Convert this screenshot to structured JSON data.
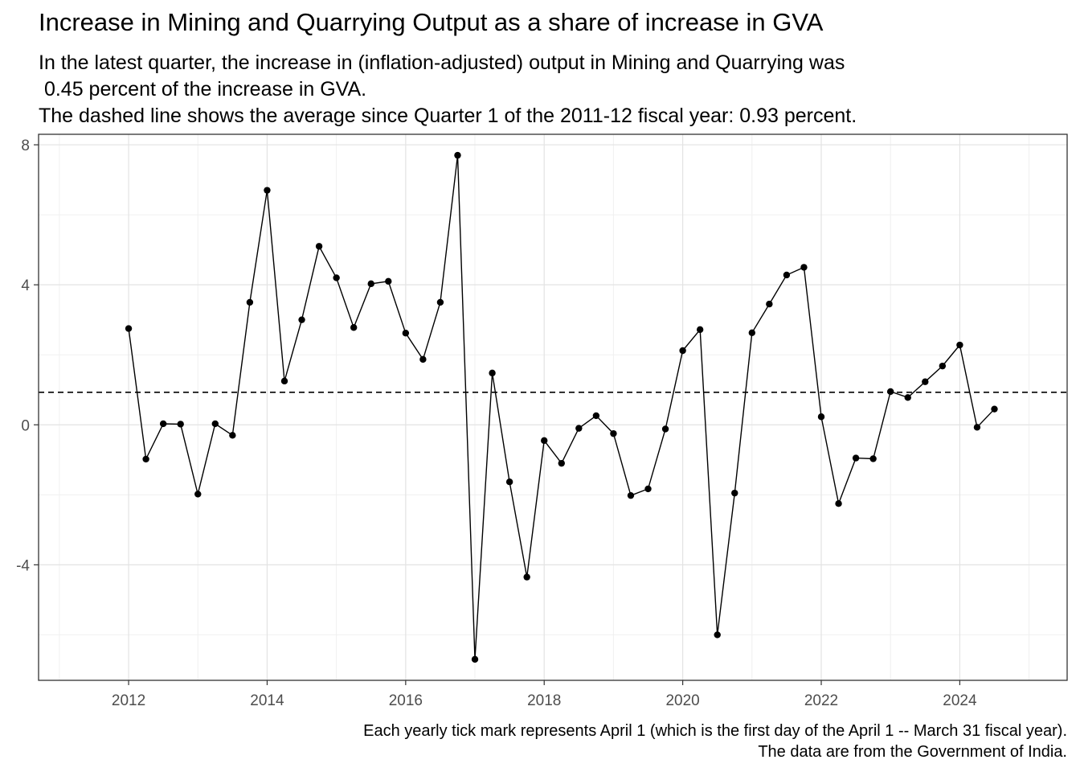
{
  "chart_data": {
    "type": "line",
    "title": "Increase in Mining and Quarrying Output as a share of increase in GVA",
    "subtitle": [
      "In the latest quarter, the increase in (inflation-adjusted) output in Mining and Quarrying was",
      " 0.45 percent of the increase in GVA.",
      "The dashed line shows the average since Quarter 1 of the 2011-12 fiscal year: 0.93 percent."
    ],
    "caption": [
      "Each yearly tick mark represents April 1 (which is the first day of the April 1 -- March 31 fiscal year).",
      "The data are from the Government of India."
    ],
    "xlabel": "",
    "ylabel": "",
    "xlim": [
      2010.7,
      2025.55
    ],
    "ylim": [
      -7.3,
      8.3
    ],
    "x_ticks": [
      "2012",
      "2014",
      "2016",
      "2018",
      "2020",
      "2022",
      "2024"
    ],
    "y_ticks": [
      "-4",
      "0",
      "4",
      "8"
    ],
    "grid": true,
    "average_line": 0.93,
    "series": [
      {
        "x": [
          2012.0,
          2012.25,
          2012.5,
          2012.75,
          2013.0,
          2013.25,
          2013.5,
          2013.75,
          2014.0,
          2014.25,
          2014.5,
          2014.75,
          2015.0,
          2015.25,
          2015.5,
          2015.75,
          2016.0,
          2016.25,
          2016.5,
          2016.75,
          2017.0,
          2017.25,
          2017.5,
          2017.75,
          2018.0,
          2018.25,
          2018.5,
          2018.75,
          2019.0,
          2019.25,
          2019.5,
          2019.75,
          2020.0,
          2020.25,
          2020.5,
          2020.75,
          2021.0,
          2021.25,
          2021.5,
          2021.75,
          2022.0,
          2022.25,
          2022.5,
          2022.75,
          2023.0,
          2023.25,
          2023.5,
          2023.75,
          2024.0,
          2024.25,
          2024.5
        ],
        "values": [
          2.75,
          -0.98,
          0.03,
          0.02,
          -1.98,
          0.03,
          -0.3,
          3.5,
          6.7,
          1.25,
          3.0,
          5.1,
          4.2,
          2.78,
          4.03,
          4.1,
          2.62,
          1.87,
          3.5,
          7.7,
          -6.7,
          1.48,
          -1.63,
          -4.35,
          -0.45,
          -1.1,
          -0.1,
          0.26,
          -0.25,
          -2.02,
          -1.83,
          -0.12,
          2.12,
          2.72,
          -6.0,
          -1.95,
          2.63,
          3.45,
          4.28,
          4.5,
          0.23,
          -2.25,
          -0.95,
          -0.97,
          0.95,
          0.78,
          1.23,
          1.68,
          2.28,
          -0.07,
          0.45
        ]
      }
    ]
  }
}
